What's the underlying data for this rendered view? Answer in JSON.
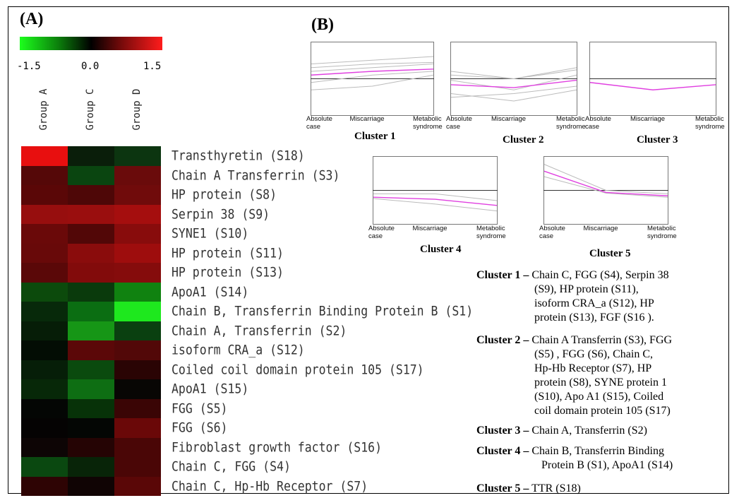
{
  "panel_a": {
    "label": "(A)",
    "scale_ticks": [
      "-1.5",
      "0.0",
      "1.5"
    ],
    "columns": [
      "Group A",
      "Group C",
      "Group D"
    ],
    "rows": [
      {
        "label": "Transthyretin (S18)",
        "values": [
          1.4,
          0.0,
          0.2
        ]
      },
      {
        "label": "Chain A Transferrin (S3)",
        "values": [
          0.55,
          0.35,
          0.7
        ]
      },
      {
        "label": "HP protein (S8)",
        "values": [
          0.45,
          0.45,
          0.7
        ]
      },
      {
        "label": "Serpin 38 (S9)",
        "values": [
          0.95,
          1.0,
          1.1
        ]
      },
      {
        "label": "SYNE1 (S10)",
        "values": [
          0.7,
          0.55,
          0.9
        ]
      },
      {
        "label": "HP protein (S11)",
        "values": [
          0.65,
          0.95,
          1.1
        ]
      },
      {
        "label": "HP protein (S13)",
        "values": [
          0.55,
          0.85,
          0.9
        ]
      },
      {
        "label": "ApoA1 (S14)",
        "values": [
          0.55,
          0.45,
          0.85
        ]
      },
      {
        "label": "Chain B, Transferrin Binding Protein B (S1)",
        "values": [
          0.3,
          0.6,
          1.5
        ]
      },
      {
        "label": "Chain A, Transferrin (S2)",
        "values": [
          0.2,
          0.95,
          0.4
        ]
      },
      {
        "label": "isoform CRA_a (S12)",
        "values": [
          0.1,
          0.6,
          0.55
        ]
      },
      {
        "label": "Coiled coil domain protein 105 (S17)",
        "values": [
          0.2,
          0.45,
          0.25
        ]
      },
      {
        "label": "ApoA1 (S15)",
        "values": [
          0.25,
          0.7,
          0.05
        ]
      },
      {
        "label": "FGG (S5)",
        "values": [
          0.05,
          0.3,
          0.3
        ]
      },
      {
        "label": "FGG (S6)",
        "values": [
          0.05,
          0.05,
          0.6
        ]
      },
      {
        "label": "Fibroblast growth factor (S16)",
        "values": [
          0.15,
          0.25,
          0.45
        ]
      },
      {
        "label": "Chain C, FGG (S4)",
        "values": [
          0.45,
          0.15,
          0.45
        ]
      },
      {
        "label": "Chain C, Hp-Hb Receptor (S7)",
        "values": [
          0.3,
          0.1,
          0.55
        ]
      }
    ],
    "row_colors": [
      [
        "#e80f0f",
        "#0a1e0a",
        "#0c3510"
      ],
      [
        "#550808",
        "#0a4510",
        "#6a0b0b"
      ],
      [
        "#5a0707",
        "#4e0707",
        "#700b0b"
      ],
      [
        "#970e0e",
        "#9a0e0e",
        "#a50e0e"
      ],
      [
        "#6a0909",
        "#520707",
        "#880c0c"
      ],
      [
        "#680909",
        "#8a0c0c",
        "#9e0d0d"
      ],
      [
        "#5a0808",
        "#820b0b",
        "#850c0c"
      ],
      [
        "#0c4a0c",
        "#0a3a0c",
        "#108210"
      ],
      [
        "#07290a",
        "#0b6e12",
        "#1ee81e"
      ],
      [
        "#061d07",
        "#169616",
        "#0a4010"
      ],
      [
        "#030d04",
        "#5b0808",
        "#520808"
      ],
      [
        "#061e08",
        "#0a4a0e",
        "#2a0404"
      ],
      [
        "#072808",
        "#0e6e13",
        "#080604"
      ],
      [
        "#040604",
        "#073208",
        "#3a0505"
      ],
      [
        "#050303",
        "#040604",
        "#6a0808"
      ],
      [
        "#0d0505",
        "#250404",
        "#4a0606"
      ],
      [
        "#0a4810",
        "#082408",
        "#4a0606"
      ],
      [
        "#2e0404",
        "#100404",
        "#5a0707"
      ]
    ]
  },
  "panel_b": {
    "label": "(B)",
    "x_categories": [
      "Absolute case",
      "Miscarriage",
      "Metabolic syndrome"
    ],
    "clusters": [
      {
        "title": "Cluster 1",
        "mean": [
          0.55,
          0.6,
          0.63
        ],
        "members_text": [
          "Chain C, FGG (S4), Serpin 38",
          "(S9), HP protein (S11),",
          "isoform CRA_a (S12), HP",
          "protein (S13),  FGF (S16 )."
        ]
      },
      {
        "title": "Cluster 2",
        "mean": [
          0.42,
          0.38,
          0.48
        ],
        "members_text": [
          "Chain A Transferrin (S3), FGG",
          "(S5) ,  FGG (S6), Chain C,",
          "Hp-Hb Receptor (S7),  HP",
          "protein (S8), SYNE protein 1",
          "(S10),  Apo A1 (S15),  Coiled",
          "coil domain protein 105 (S17)"
        ]
      },
      {
        "title": "Cluster 3",
        "mean": [
          0.45,
          0.35,
          0.42
        ],
        "members_text": [
          "Chain A, Transferrin (S2)"
        ]
      },
      {
        "title": "Cluster 4",
        "mean": [
          0.4,
          0.37,
          0.28
        ],
        "members_text": [
          "Chain B, Transferrin Binding",
          "Protein B (S1), ApoA1 (S14)"
        ]
      },
      {
        "title": "Cluster 5",
        "mean": [
          0.78,
          0.47,
          0.42
        ],
        "members_text": [
          "TTR (S18)"
        ]
      }
    ],
    "member_heading_suffix": " –",
    "line_color": "#e040e0"
  }
}
